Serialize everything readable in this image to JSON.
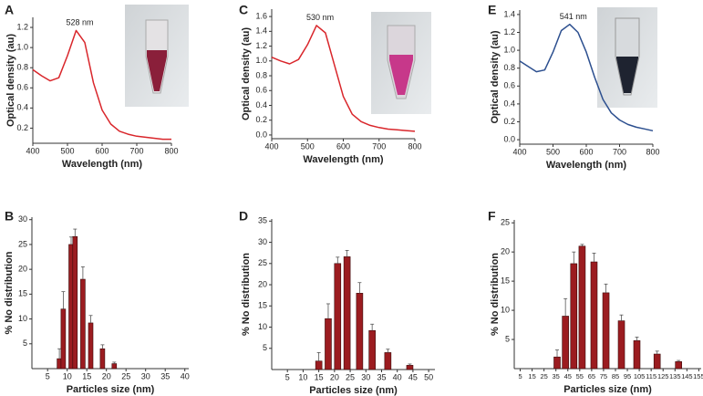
{
  "chart_data": [
    {
      "type": "line",
      "panel_label": "A",
      "xlabel": "Wavelength (nm)",
      "ylabel": "Optical density (au)",
      "annotation": "528 nm",
      "x": [
        400,
        425,
        450,
        475,
        500,
        525,
        550,
        575,
        600,
        625,
        650,
        675,
        700,
        725,
        750,
        775,
        800
      ],
      "series": [
        {
          "color": "#d9262b",
          "values": [
            0.78,
            0.72,
            0.67,
            0.7,
            0.92,
            1.17,
            1.05,
            0.65,
            0.38,
            0.24,
            0.17,
            0.14,
            0.12,
            0.11,
            0.1,
            0.09,
            0.09
          ]
        }
      ],
      "xlim": [
        400,
        800
      ],
      "xticks": [
        400,
        500,
        600,
        700,
        800
      ],
      "ylim": [
        0.05,
        1.3
      ],
      "yticks": [
        0.2,
        0.4,
        0.6,
        0.8,
        {
          "value": 1,
          "label": "1.0"
        },
        1.2
      ]
    },
    {
      "type": "line",
      "panel_label": "C",
      "xlabel": "Wavelength (nm)",
      "ylabel": "Optical density (au)",
      "annotation": "530 nm",
      "x": [
        400,
        425,
        450,
        475,
        500,
        525,
        550,
        575,
        600,
        625,
        650,
        675,
        700,
        725,
        750,
        775,
        800
      ],
      "series": [
        {
          "color": "#d9262b",
          "values": [
            1.05,
            1.0,
            0.96,
            1.02,
            1.22,
            1.48,
            1.38,
            0.95,
            0.52,
            0.28,
            0.18,
            0.13,
            0.1,
            0.08,
            0.07,
            0.06,
            0.05
          ]
        }
      ],
      "xlim": [
        400,
        800
      ],
      "xticks": [
        400,
        500,
        600,
        700,
        800
      ],
      "ylim": [
        -0.05,
        1.7
      ],
      "yticks": [
        {
          "value": 0,
          "label": "0.0"
        },
        0.2,
        0.4,
        0.6,
        0.8,
        {
          "value": 1,
          "label": "1.0"
        },
        1.2,
        1.4,
        1.6
      ]
    },
    {
      "type": "line",
      "panel_label": "E",
      "xlabel": "Wavelength (nm)",
      "ylabel": "Optical density (au)",
      "annotation": "541 nm",
      "x": [
        400,
        425,
        450,
        475,
        500,
        525,
        550,
        575,
        600,
        625,
        650,
        675,
        700,
        725,
        750,
        775,
        800
      ],
      "series": [
        {
          "color": "#2c4f8f",
          "values": [
            0.88,
            0.82,
            0.76,
            0.78,
            0.98,
            1.22,
            1.29,
            1.2,
            0.98,
            0.7,
            0.45,
            0.3,
            0.22,
            0.17,
            0.14,
            0.12,
            0.1
          ]
        }
      ],
      "xlim": [
        400,
        800
      ],
      "xticks": [
        400,
        500,
        600,
        700,
        800
      ],
      "ylim": [
        -0.05,
        1.45
      ],
      "yticks": [
        {
          "value": 0,
          "label": "0.0"
        },
        0.2,
        0.4,
        0.6,
        0.8,
        {
          "value": 1,
          "label": "1.0"
        },
        1.2,
        1.4
      ]
    },
    {
      "type": "histogram",
      "panel_label": "B",
      "xlabel": "Particles size (nm)",
      "ylabel": "% No distribution",
      "color": "#9b1c20",
      "x": [
        8,
        9,
        11,
        12,
        14,
        16,
        19,
        22
      ],
      "values": [
        2,
        12,
        25,
        26.6,
        18,
        9.2,
        4,
        1
      ],
      "errors": [
        2,
        3.5,
        1.5,
        1.5,
        2.5,
        1.5,
        0.8,
        0.3
      ],
      "xlim": [
        1,
        41
      ],
      "xticks": [
        5,
        10,
        15,
        20,
        25,
        30,
        35,
        40
      ],
      "ylim": [
        0,
        30.5
      ],
      "yticks": [
        5,
        10,
        15,
        20,
        25,
        30
      ]
    },
    {
      "type": "histogram",
      "panel_label": "D",
      "xlabel": "Particles size (nm)",
      "ylabel": "% No distribution",
      "color": "#9b1c20",
      "x": [
        15,
        18,
        21,
        24,
        28,
        32,
        37,
        44
      ],
      "values": [
        2,
        12,
        25,
        26.6,
        18,
        9.2,
        4,
        1
      ],
      "errors": [
        2,
        3.5,
        1.5,
        1.5,
        2.5,
        1.5,
        0.8,
        0.3
      ],
      "xlim": [
        0,
        52
      ],
      "xticks": [
        5,
        10,
        15,
        20,
        25,
        30,
        35,
        40,
        45,
        50
      ],
      "ylim": [
        0,
        35.5
      ],
      "yticks": [
        5,
        10,
        15,
        20,
        25,
        30,
        35
      ]
    },
    {
      "type": "histogram",
      "panel_label": "F",
      "xlabel": "Particles size (nm)",
      "ylabel": "% No distribution",
      "color": "#9b1c20",
      "x": [
        36,
        43,
        50,
        57,
        67,
        77,
        90,
        103,
        120,
        138
      ],
      "values": [
        2,
        9,
        18,
        21,
        18.3,
        13,
        8.2,
        4.8,
        2.5,
        1.2
      ],
      "errors": [
        1.2,
        3,
        2,
        0.3,
        1.5,
        1.5,
        1,
        0.6,
        0.5,
        0.2
      ],
      "xlim": [
        0,
        157
      ],
      "xticks": [
        5,
        15,
        25,
        35,
        45,
        55,
        65,
        75,
        85,
        95,
        105,
        115,
        125,
        135,
        145,
        155
      ],
      "ylim": [
        0,
        25.5
      ],
      "yticks": [
        5,
        10,
        15,
        20,
        25
      ]
    }
  ]
}
